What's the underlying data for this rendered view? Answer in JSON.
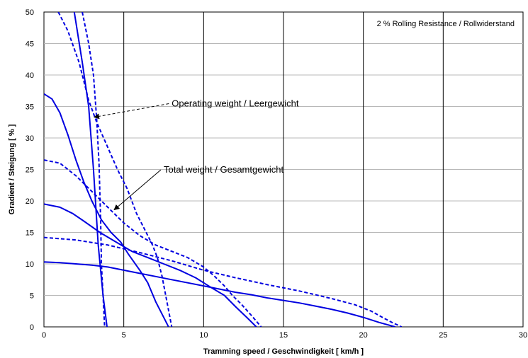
{
  "chart_data": {
    "type": "line",
    "note": "2 % Rolling Resistance / Rollwiderstand",
    "xlabel": "Tramming speed / Geschwindigkeit   [ km/h ]",
    "ylabel": "Gradient / Steigung   [ % ]",
    "xlim": [
      0,
      30
    ],
    "ylim": [
      0,
      50
    ],
    "x_ticks": [
      0,
      5,
      10,
      15,
      20,
      25,
      30
    ],
    "y_ticks": [
      0,
      5,
      10,
      15,
      20,
      25,
      30,
      35,
      40,
      45,
      50
    ],
    "grid": {
      "x_major": true,
      "y_major": true
    },
    "series": [
      {
        "style": "solid",
        "color": "#0000e0",
        "points": [
          [
            1.9,
            50
          ],
          [
            2.4,
            42
          ],
          [
            2.8,
            35
          ],
          [
            3.1,
            25
          ],
          [
            3.4,
            13
          ],
          [
            3.7,
            5
          ],
          [
            3.95,
            0
          ]
        ]
      },
      {
        "style": "solid",
        "color": "#0000e0",
        "points": [
          [
            0,
            37
          ],
          [
            0.5,
            36.2
          ],
          [
            1,
            34
          ],
          [
            1.5,
            30.5
          ],
          [
            2,
            26.5
          ],
          [
            2.5,
            23
          ],
          [
            3,
            20
          ],
          [
            3.6,
            17
          ],
          [
            4.2,
            15
          ],
          [
            4.8,
            13.5
          ],
          [
            5.3,
            11.5
          ],
          [
            6,
            9
          ],
          [
            6.5,
            7
          ],
          [
            7,
            4
          ],
          [
            7.5,
            1.5
          ],
          [
            7.8,
            0
          ]
        ]
      },
      {
        "style": "solid",
        "color": "#0000e0",
        "points": [
          [
            0,
            19.5
          ],
          [
            1,
            19
          ],
          [
            1.8,
            18
          ],
          [
            2.5,
            16.8
          ],
          [
            3.5,
            15
          ],
          [
            4.5,
            13.5
          ],
          [
            5.5,
            12
          ],
          [
            6.5,
            11
          ],
          [
            7.5,
            10
          ],
          [
            8.5,
            9
          ],
          [
            9.5,
            7.8
          ],
          [
            10.5,
            6.2
          ],
          [
            11.3,
            5
          ],
          [
            12,
            3.2
          ],
          [
            12.7,
            1.5
          ],
          [
            13.3,
            0
          ]
        ]
      },
      {
        "style": "solid",
        "color": "#0000e0",
        "points": [
          [
            0,
            10.3
          ],
          [
            1,
            10.2
          ],
          [
            2,
            10
          ],
          [
            3,
            9.8
          ],
          [
            4,
            9.5
          ],
          [
            5,
            9
          ],
          [
            6,
            8.5
          ],
          [
            7,
            8
          ],
          [
            8,
            7.5
          ],
          [
            9,
            7
          ],
          [
            10,
            6.5
          ],
          [
            11,
            6
          ],
          [
            12,
            5.5
          ],
          [
            13,
            5.1
          ],
          [
            14,
            4.6
          ],
          [
            15,
            4.2
          ],
          [
            16,
            3.8
          ],
          [
            17,
            3.3
          ],
          [
            18,
            2.8
          ],
          [
            19,
            2.2
          ],
          [
            20,
            1.5
          ],
          [
            21,
            0.7
          ],
          [
            22,
            0
          ]
        ]
      },
      {
        "style": "dashed",
        "color": "#0000e0",
        "points": [
          [
            2.4,
            50
          ],
          [
            2.8,
            45
          ],
          [
            3.1,
            40
          ],
          [
            3.3,
            33
          ],
          [
            3.45,
            26
          ],
          [
            3.55,
            17
          ],
          [
            3.6,
            10
          ],
          [
            3.7,
            5
          ],
          [
            3.8,
            0
          ]
        ]
      },
      {
        "style": "dashed",
        "color": "#0000e0",
        "points": [
          [
            0.9,
            50
          ],
          [
            1.5,
            47
          ],
          [
            2.2,
            42
          ],
          [
            2.8,
            36
          ],
          [
            3.3,
            32.5
          ],
          [
            4,
            28.5
          ],
          [
            4.6,
            25
          ],
          [
            5.2,
            22
          ],
          [
            5.8,
            18
          ],
          [
            6.3,
            15.5
          ],
          [
            6.8,
            13
          ],
          [
            7.1,
            11
          ],
          [
            7.4,
            8
          ],
          [
            7.7,
            4
          ],
          [
            8,
            0
          ]
        ]
      },
      {
        "style": "dashed",
        "color": "#0000e0",
        "points": [
          [
            0,
            26.5
          ],
          [
            1,
            26
          ],
          [
            2,
            24
          ],
          [
            3,
            21.5
          ],
          [
            4,
            19
          ],
          [
            5,
            16.5
          ],
          [
            6,
            14.5
          ],
          [
            7,
            13
          ],
          [
            8,
            12
          ],
          [
            9,
            11
          ],
          [
            10,
            9.5
          ],
          [
            10.7,
            8
          ],
          [
            11.3,
            6.5
          ],
          [
            11.8,
            5
          ],
          [
            12.4,
            3.5
          ],
          [
            13,
            1.8
          ],
          [
            13.6,
            0
          ]
        ]
      },
      {
        "style": "dashed",
        "color": "#0000e0",
        "points": [
          [
            0,
            14.2
          ],
          [
            2,
            13.8
          ],
          [
            4,
            13
          ],
          [
            6,
            11.8
          ],
          [
            8,
            10.5
          ],
          [
            10,
            9
          ],
          [
            12,
            7.8
          ],
          [
            14,
            6.7
          ],
          [
            16,
            5.7
          ],
          [
            18,
            4.5
          ],
          [
            19.5,
            3.5
          ],
          [
            20.5,
            2.5
          ],
          [
            21.2,
            1.5
          ],
          [
            21.8,
            0.7
          ],
          [
            22.4,
            0
          ]
        ]
      }
    ],
    "annotations": [
      {
        "text": "Operating weight / Leergewicht",
        "at": [
          8,
          35
        ],
        "arrow_to": [
          3.15,
          33.3
        ],
        "arrow_style": "dashed"
      },
      {
        "text": "Total weight / Gesamtgewicht",
        "at": [
          7.5,
          24.5
        ],
        "arrow_to": [
          4.4,
          18.6
        ],
        "arrow_style": "solid"
      }
    ]
  }
}
